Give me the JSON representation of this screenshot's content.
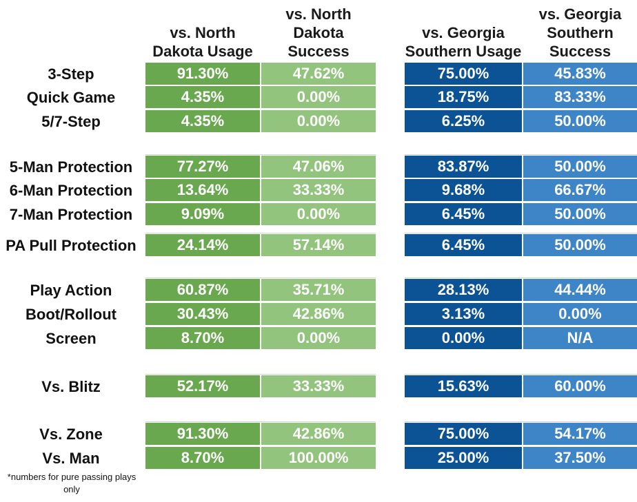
{
  "colors": {
    "und_usage": "#6aa84f",
    "und_success": "#93c47d",
    "gs_usage": "#0b5394",
    "gs_success": "#3d85c6"
  },
  "chart_data": {
    "type": "table",
    "columns": [
      "vs. North Dakota Usage",
      "vs. North Dakota Success",
      "vs. Georgia Southern Usage",
      "vs. Georgia Southern Success"
    ],
    "rows": [
      {
        "label": "3-Step",
        "values": [
          "91.30%",
          "47.62%",
          "75.00%",
          "45.83%"
        ]
      },
      {
        "label": "Quick Game",
        "values": [
          "4.35%",
          "0.00%",
          "18.75%",
          "83.33%"
        ]
      },
      {
        "label": "5/7-Step",
        "values": [
          "4.35%",
          "0.00%",
          "6.25%",
          "50.00%"
        ]
      },
      {
        "label": "5-Man Protection",
        "values": [
          "77.27%",
          "47.06%",
          "83.87%",
          "50.00%"
        ]
      },
      {
        "label": "6-Man Protection",
        "values": [
          "13.64%",
          "33.33%",
          "9.68%",
          "66.67%"
        ]
      },
      {
        "label": "7-Man Protection",
        "values": [
          "9.09%",
          "0.00%",
          "6.45%",
          "50.00%"
        ]
      },
      {
        "label": "PA Pull Protection",
        "values": [
          "24.14%",
          "57.14%",
          "6.45%",
          "50.00%"
        ]
      },
      {
        "label": "Play Action",
        "values": [
          "60.87%",
          "35.71%",
          "28.13%",
          "44.44%"
        ]
      },
      {
        "label": "Boot/Rollout",
        "values": [
          "30.43%",
          "42.86%",
          "3.13%",
          "0.00%"
        ]
      },
      {
        "label": "Screen",
        "values": [
          "8.70%",
          "0.00%",
          "0.00%",
          "N/A"
        ]
      },
      {
        "label": "Vs. Blitz",
        "values": [
          "52.17%",
          "33.33%",
          "15.63%",
          "60.00%"
        ]
      },
      {
        "label": "Vs. Zone",
        "values": [
          "91.30%",
          "42.86%",
          "75.00%",
          "54.17%"
        ]
      },
      {
        "label": "Vs. Man",
        "values": [
          "8.70%",
          "100.00%",
          "25.00%",
          "37.50%"
        ]
      }
    ],
    "footnote": "*numbers for pure passing plays only"
  }
}
